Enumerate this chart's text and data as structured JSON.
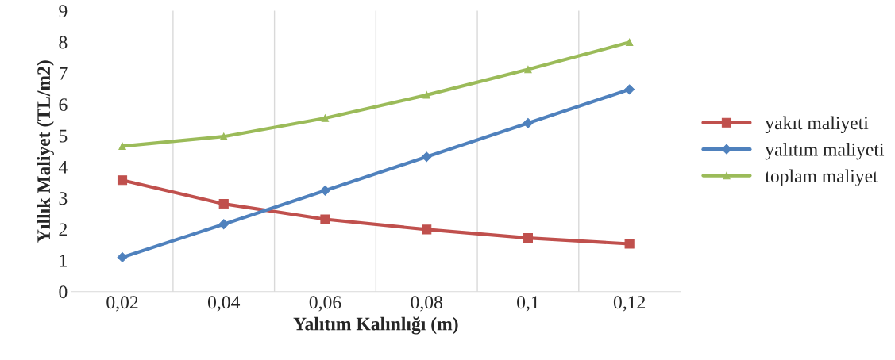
{
  "chart_data": {
    "type": "line",
    "xlabel": "Yalıtım Kalınlığı (m)",
    "ylabel": "Yıllık Maliyet (TL/m2)",
    "categories": [
      "0,02",
      "0,04",
      "0,06",
      "0,08",
      "0,1",
      "0,12"
    ],
    "series": [
      {
        "name": "yakıt maliyeti",
        "color": "#c0504d",
        "marker": "square",
        "values": [
          3.57,
          2.81,
          2.32,
          1.99,
          1.72,
          1.53
        ]
      },
      {
        "name": "yalıtım maliyeti",
        "color": "#4f81bd",
        "marker": "diamond",
        "values": [
          1.1,
          2.16,
          3.24,
          4.32,
          5.4,
          6.48
        ]
      },
      {
        "name": "toplam maliyet",
        "color": "#9bbb59",
        "marker": "triangle",
        "values": [
          4.66,
          4.97,
          5.56,
          6.3,
          7.12,
          7.99
        ]
      }
    ],
    "ylim": [
      0,
      9
    ],
    "yticks": [
      0,
      1,
      2,
      3,
      4,
      5,
      6,
      7,
      8,
      9
    ],
    "grid": "x",
    "legend": "right",
    "line_style": "solid"
  }
}
